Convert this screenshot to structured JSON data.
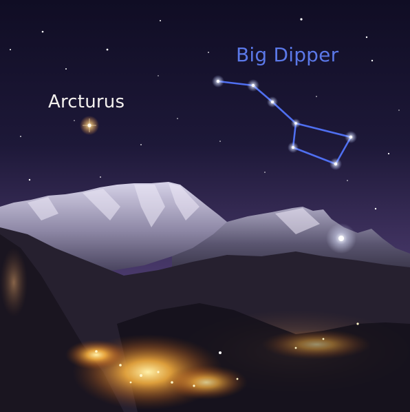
{
  "labels": {
    "arcturus": "Arcturus",
    "big_dipper": "Big Dipper"
  },
  "colors": {
    "arcturus_label": "#f4f1ee",
    "big_dipper_label": "#5b78e8",
    "constellation_line": "#4f6ff0",
    "sky_top": "#100d24",
    "sky_horizon": "#4a3a6c",
    "town_lights": "#ffb640"
  }
}
